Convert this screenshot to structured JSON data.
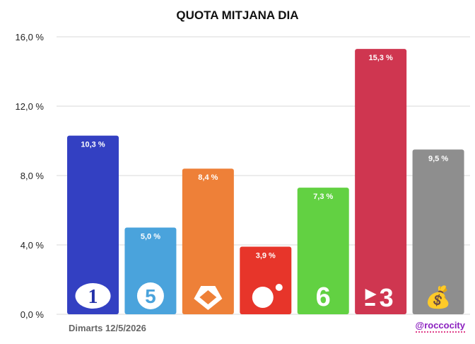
{
  "title": "QUOTA MITJANA DIA",
  "footer": {
    "date": "Dimarts 12/5/2026",
    "credit": "@roccocity"
  },
  "chart_data": {
    "type": "bar",
    "title": "QUOTA MITJANA DIA",
    "categories": [
      "1",
      "5",
      "Antena 3",
      "Cuatro",
      "6",
      "3",
      "💰"
    ],
    "values": [
      10.3,
      5.0,
      8.4,
      3.9,
      7.3,
      15.3,
      9.5
    ],
    "data_labels": [
      "10,3 %",
      "5,0 %",
      "8,4 %",
      "3,9 %",
      "7,3 %",
      "15,3 %",
      "9,5 %"
    ],
    "colors": [
      "#3340c2",
      "#4aa3dc",
      "#ee8038",
      "#e7352a",
      "#62d142",
      "#cf3650",
      "#8e8e8e"
    ],
    "ylim": [
      0,
      16
    ],
    "yticks": [
      0,
      4,
      8,
      12,
      16
    ],
    "ytick_labels": [
      "0,0 %",
      "4,0 %",
      "8,0 %",
      "12,0 %",
      "16,0 %"
    ],
    "grid": true,
    "xlabel": "",
    "ylabel": ""
  }
}
